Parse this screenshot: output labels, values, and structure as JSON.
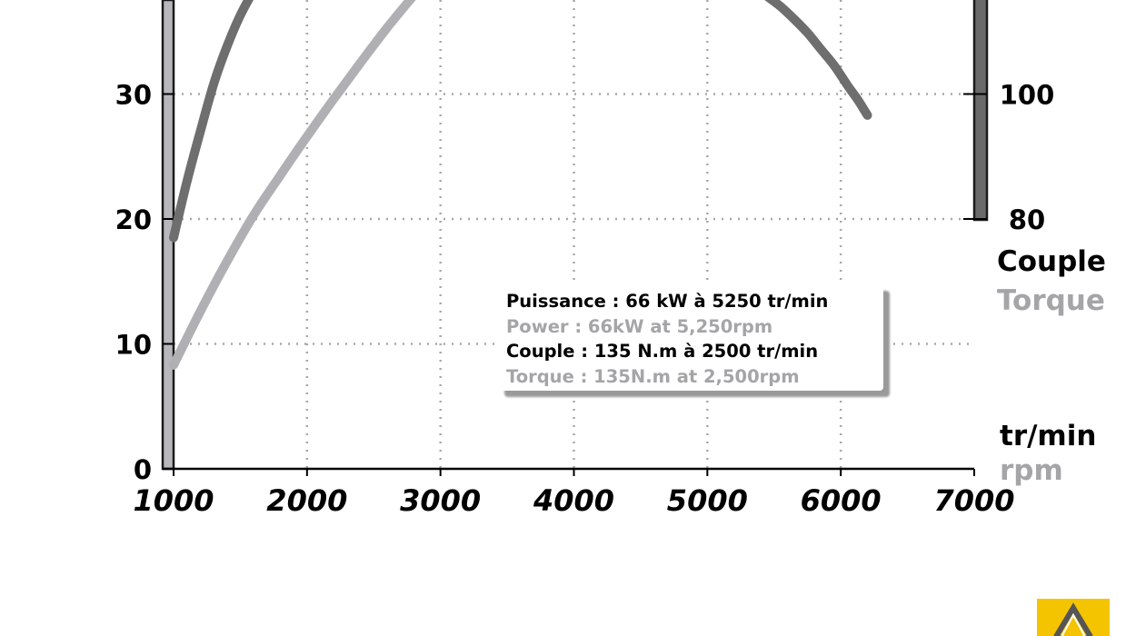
{
  "chart_data": {
    "type": "line",
    "x_axis": {
      "ticks": [
        1000,
        2000,
        3000,
        4000,
        5000,
        6000,
        7000
      ],
      "range": [
        1000,
        7000
      ]
    },
    "left_axis": {
      "ticks": [
        0,
        10,
        20,
        30
      ],
      "range": [
        0,
        37.5
      ]
    },
    "right_axis": {
      "ticks": [
        80,
        100
      ]
    },
    "grid": true,
    "series": [
      {
        "color": "#6e6e6e",
        "points": [
          [
            1000,
            18.5
          ],
          [
            1100,
            23
          ],
          [
            1200,
            27
          ],
          [
            1300,
            30.8
          ],
          [
            1400,
            33.8
          ],
          [
            1500,
            36.3
          ],
          [
            1600,
            38.3
          ]
        ]
      },
      {
        "color": "#6e6e6e",
        "points": [
          [
            5450,
            37.8
          ],
          [
            5550,
            37.0
          ],
          [
            5650,
            36.0
          ],
          [
            5750,
            34.9
          ],
          [
            5850,
            33.6
          ],
          [
            5950,
            32.3
          ],
          [
            6050,
            30.7
          ],
          [
            6130,
            29.5
          ],
          [
            6200,
            28.3
          ]
        ]
      },
      {
        "color": "#b0b0b4",
        "points": [
          [
            1000,
            8.3
          ],
          [
            1200,
            12.6
          ],
          [
            1400,
            16.6
          ],
          [
            1600,
            20.3
          ],
          [
            1800,
            23.5
          ],
          [
            2000,
            26.6
          ],
          [
            2200,
            29.6
          ],
          [
            2400,
            32.5
          ],
          [
            2600,
            35.3
          ],
          [
            2800,
            37.9
          ]
        ]
      }
    ],
    "unit_labels": {
      "couple": "Couple",
      "torque": "Torque",
      "trmin": "tr/min",
      "rpm": "rpm"
    },
    "annotation": [
      {
        "text": "Puissance : 66 kW à 5250 tr/min",
        "style": "black"
      },
      {
        "text": "Power : 66kW at 5,250rpm",
        "style": "grey"
      },
      {
        "text": "Couple : 135 N.m à 2500 tr/min",
        "style": "black"
      },
      {
        "text": "Torque : 135N.m at 2,500rpm",
        "style": "grey"
      }
    ]
  },
  "colors": {
    "black_text": "#000000",
    "grey_text": "#a5a5a8",
    "power_line": "#6e6e6e",
    "torque_line": "#b0b0b4",
    "logo_yellow": "#f5c400"
  },
  "logo": {
    "icon": "renault-diamond-icon"
  }
}
